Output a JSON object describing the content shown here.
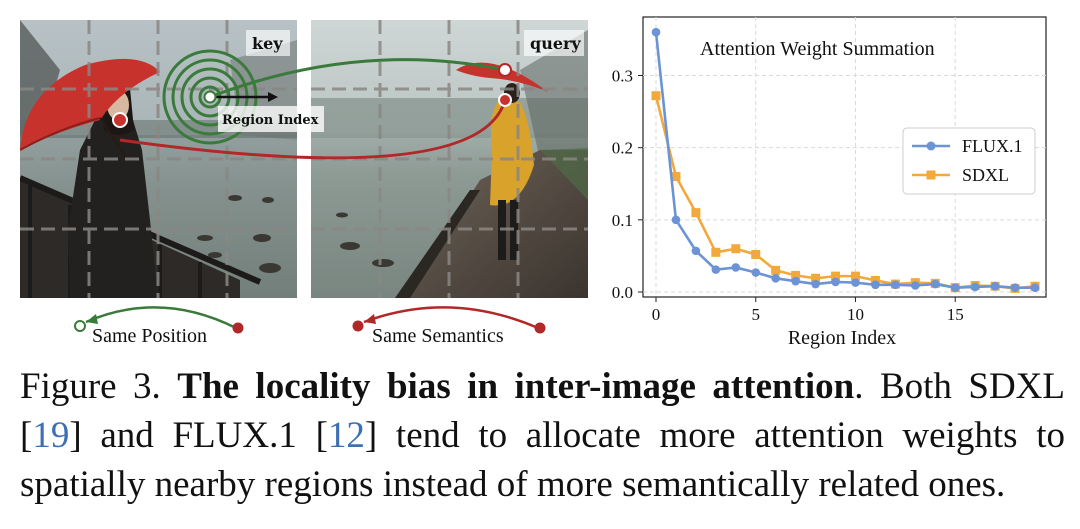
{
  "panel_left": {
    "key_label": "key",
    "region_index_label": "Region Index",
    "same_position_label": "Same Position"
  },
  "panel_right": {
    "query_label": "query",
    "same_semantics_label": "Same Semantics"
  },
  "colors": {
    "green": "#3a7a3a",
    "red": "#b02828",
    "flux": "#6b93d6",
    "sdxl": "#f2a93b",
    "cite": "#3e6fb2"
  },
  "chart_data": {
    "type": "line",
    "title": "Attention Weight Summation",
    "xlabel": "Region Index",
    "ylabel": "",
    "xlim": [
      0,
      19
    ],
    "ylim": [
      0,
      0.37
    ],
    "xticks": [
      0,
      5,
      10,
      15
    ],
    "yticks": [
      0.0,
      0.1,
      0.2,
      0.3
    ],
    "ytick_labels": [
      "0.0",
      "0.1",
      "0.2",
      "0.3"
    ],
    "grid": true,
    "legend": "center-right",
    "x": [
      0,
      1,
      2,
      3,
      4,
      5,
      6,
      7,
      8,
      9,
      10,
      11,
      12,
      13,
      14,
      15,
      16,
      17,
      18,
      19
    ],
    "series": [
      {
        "name": "FLUX.1",
        "marker": "circle",
        "color": "#6b93d6",
        "values": [
          0.36,
          0.1,
          0.057,
          0.031,
          0.034,
          0.027,
          0.019,
          0.015,
          0.011,
          0.014,
          0.013,
          0.01,
          0.01,
          0.009,
          0.011,
          0.006,
          0.007,
          0.008,
          0.006,
          0.006
        ]
      },
      {
        "name": "SDXL",
        "marker": "square",
        "color": "#f2a93b",
        "values": [
          0.272,
          0.16,
          0.11,
          0.055,
          0.06,
          0.052,
          0.03,
          0.023,
          0.019,
          0.022,
          0.022,
          0.016,
          0.011,
          0.013,
          0.012,
          0.006,
          0.009,
          0.008,
          0.005,
          0.008
        ]
      }
    ]
  },
  "caption": {
    "figure_label": "Figure 3.",
    "bold_title": "The locality bias in inter-image attention",
    "t1": ". Both SDXL ",
    "ref1": "19",
    "t2": " and FLUX.1 ",
    "ref2": "12",
    "t3": " tend to allocate more attention weights to spatially nearby regions instead of more semantically related ones."
  }
}
